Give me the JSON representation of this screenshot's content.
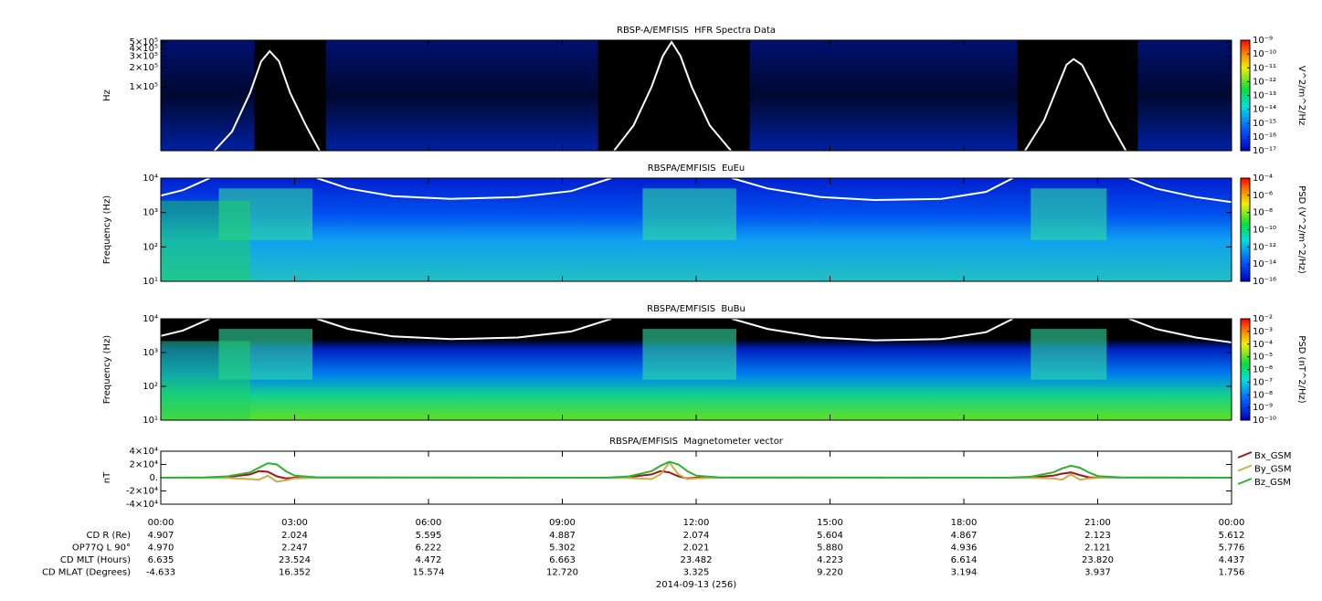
{
  "chart_data": [
    {
      "type": "spectrogram",
      "title": "RBSP-A/EMFISIS  HFR Spectra Data",
      "ylabel": "Hz",
      "ylog": true,
      "xlim": [
        0,
        24
      ],
      "xticks": [
        0,
        3,
        6,
        9,
        12,
        15,
        18,
        21,
        24
      ],
      "ylim": [
        10000,
        534000
      ],
      "yticks": [
        {
          "value": 500000,
          "label": "5×10⁵"
        },
        {
          "value": 400000,
          "label": "4×10⁵"
        },
        {
          "value": 300000,
          "label": "3×10⁵"
        },
        {
          "value": 200000,
          "label": "2×10⁵"
        },
        {
          "value": 100000,
          "label": "1×10⁵"
        }
      ],
      "series": [
        {
          "color": "#ffffff",
          "x": [
            1.2,
            1.6,
            2.0,
            2.25,
            2.44,
            2.65,
            2.9,
            3.25,
            3.56,
            6.8,
            10.16,
            10.6,
            11.0,
            11.25,
            11.45,
            11.65,
            11.9,
            12.3,
            12.78,
            16.0,
            19.37,
            19.8,
            20.1,
            20.3,
            20.46,
            20.65,
            20.9,
            21.25,
            21.63
          ],
          "values": [
            10000,
            20000,
            80000,
            250000,
            360000,
            250000,
            80000,
            25000,
            10000,
            null,
            10000,
            25000,
            100000,
            300000,
            500000,
            300000,
            100000,
            25000,
            10000,
            null,
            10000,
            30000,
            100000,
            220000,
            270000,
            220000,
            100000,
            30000,
            10000
          ]
        }
      ],
      "colorbar": {
        "label": "V^2/m^2/Hz",
        "lim": [
          1e-17,
          1e-09
        ],
        "ticks": [
          {
            "value": 1e-09,
            "label": "10⁻⁹"
          },
          {
            "value": 1e-10,
            "label": "10⁻¹⁰"
          },
          {
            "value": 1e-11,
            "label": "10⁻¹¹"
          },
          {
            "value": 1e-12,
            "label": "10⁻¹²"
          },
          {
            "value": 1e-13,
            "label": "10⁻¹³"
          },
          {
            "value": 1e-14,
            "label": "10⁻¹⁴"
          },
          {
            "value": 1e-15,
            "label": "10⁻¹⁵"
          },
          {
            "value": 1e-16,
            "label": "10⁻¹⁶"
          },
          {
            "value": 1e-17,
            "label": "10⁻¹⁷"
          }
        ]
      }
    },
    {
      "type": "spectrogram",
      "title": "RBSPA/EMFISIS  EuEu",
      "ylabel": "Frequency (Hz)",
      "ylog": true,
      "xlim": [
        0,
        24
      ],
      "xticks": [
        0,
        3,
        6,
        9,
        12,
        15,
        18,
        21,
        24
      ],
      "ylim": [
        10,
        10000
      ],
      "yticks": [
        {
          "value": 10000,
          "label": "10⁴"
        },
        {
          "value": 1000,
          "label": "10³"
        },
        {
          "value": 100,
          "label": "10²"
        },
        {
          "value": 10,
          "label": "10¹"
        }
      ],
      "series": [
        {
          "color": "#ffffff",
          "x": [
            0,
            0.5,
            1.1,
            2.3,
            3.5,
            4.2,
            5.2,
            6.5,
            8,
            9.2,
            10.1,
            11.4,
            12.8,
            13.6,
            14.8,
            16,
            17.5,
            18.5,
            19.1,
            20.4,
            21.7,
            22.3,
            23.2,
            24
          ],
          "values": [
            3100,
            4500,
            10000,
            null,
            10000,
            5000,
            3000,
            2500,
            2800,
            4200,
            10000,
            null,
            10000,
            5000,
            2800,
            2300,
            2500,
            4000,
            10000,
            null,
            10000,
            5000,
            2800,
            2000
          ]
        }
      ],
      "colorbar": {
        "label": "PSD (V^2/m^2/Hz)",
        "lim": [
          1e-16,
          0.0001
        ],
        "ticks": [
          {
            "value": 0.0001,
            "label": "10⁻⁴"
          },
          {
            "value": 1e-06,
            "label": "10⁻⁶"
          },
          {
            "value": 1e-08,
            "label": "10⁻⁸"
          },
          {
            "value": 1e-10,
            "label": "10⁻¹⁰"
          },
          {
            "value": 1e-12,
            "label": "10⁻¹²"
          },
          {
            "value": 1e-14,
            "label": "10⁻¹⁴"
          },
          {
            "value": 1e-16,
            "label": "10⁻¹⁶"
          }
        ]
      }
    },
    {
      "type": "spectrogram",
      "title": "RBSPA/EMFISIS  BuBu",
      "ylabel": "Frequency (Hz)",
      "ylog": true,
      "xlim": [
        0,
        24
      ],
      "xticks": [
        0,
        3,
        6,
        9,
        12,
        15,
        18,
        21,
        24
      ],
      "ylim": [
        10,
        10000
      ],
      "yticks": [
        {
          "value": 10000,
          "label": "10⁴"
        },
        {
          "value": 1000,
          "label": "10³"
        },
        {
          "value": 100,
          "label": "10²"
        },
        {
          "value": 10,
          "label": "10¹"
        }
      ],
      "series": [
        {
          "color": "#ffffff",
          "x": [
            0,
            0.5,
            1.1,
            2.3,
            3.5,
            4.2,
            5.2,
            6.5,
            8,
            9.2,
            10.1,
            11.4,
            12.8,
            13.6,
            14.8,
            16,
            17.5,
            18.5,
            19.1,
            20.4,
            21.7,
            22.3,
            23.2,
            24
          ],
          "values": [
            3100,
            4500,
            10000,
            null,
            10000,
            5000,
            3000,
            2500,
            2800,
            4200,
            10000,
            null,
            10000,
            5000,
            2800,
            2300,
            2500,
            4000,
            10000,
            null,
            10000,
            5000,
            2800,
            2000
          ]
        }
      ],
      "colorbar": {
        "label": "PSD (nT^2/Hz)",
        "lim": [
          1e-10,
          0.01
        ],
        "ticks": [
          {
            "value": 0.01,
            "label": "10⁻²"
          },
          {
            "value": 0.001,
            "label": "10⁻³"
          },
          {
            "value": 0.0001,
            "label": "10⁻⁴"
          },
          {
            "value": 1e-05,
            "label": "10⁻⁵"
          },
          {
            "value": 1e-06,
            "label": "10⁻⁶"
          },
          {
            "value": 1e-07,
            "label": "10⁻⁷"
          },
          {
            "value": 1e-08,
            "label": "10⁻⁸"
          },
          {
            "value": 1e-09,
            "label": "10⁻⁹"
          },
          {
            "value": 1e-10,
            "label": "10⁻¹⁰"
          }
        ]
      }
    },
    {
      "type": "line",
      "title": "RBSPA/EMFISIS  Magnetometer vector",
      "ylabel": "nT",
      "ylog": false,
      "xlim": [
        0,
        24
      ],
      "xticks": [
        {
          "value": 0,
          "label": "00:00"
        },
        {
          "value": 3,
          "label": "03:00"
        },
        {
          "value": 6,
          "label": "06:00"
        },
        {
          "value": 9,
          "label": "09:00"
        },
        {
          "value": 12,
          "label": "12:00"
        },
        {
          "value": 15,
          "label": "15:00"
        },
        {
          "value": 18,
          "label": "18:00"
        },
        {
          "value": 21,
          "label": "21:00"
        },
        {
          "value": 24,
          "label": "00:00"
        }
      ],
      "ylim": [
        -40000,
        40000
      ],
      "yticks": [
        {
          "value": 40000,
          "label": "4×10⁴"
        },
        {
          "value": 20000,
          "label": "2×10⁴"
        },
        {
          "value": 0,
          "label": "0."
        },
        {
          "value": -20000,
          "label": "-2×10⁴"
        },
        {
          "value": -40000,
          "label": "-4×10⁴"
        }
      ],
      "series": [
        {
          "name": "Bx_GSM",
          "color": "#a01818",
          "x": [
            0,
            1,
            1.5,
            2,
            2.2,
            2.4,
            2.6,
            2.8,
            3,
            3.5,
            10,
            10.5,
            11,
            11.2,
            11.4,
            11.6,
            11.8,
            12,
            12.5,
            19,
            19.5,
            20,
            20.2,
            20.4,
            20.6,
            20.8,
            21,
            21.5,
            24
          ],
          "values": [
            0,
            0,
            1000,
            5000,
            10000,
            9000,
            2000,
            -1000,
            0,
            0,
            0,
            1000,
            5000,
            10000,
            8000,
            2000,
            -1000,
            0,
            0,
            0,
            500,
            3000,
            6000,
            8000,
            4000,
            500,
            0,
            0,
            0
          ]
        },
        {
          "name": "By_GSM",
          "color": "#c8b048",
          "x": [
            0,
            1,
            1.5,
            2,
            2.2,
            2.4,
            2.6,
            2.8,
            3,
            3.5,
            10,
            10.5,
            11,
            11.2,
            11.4,
            11.6,
            11.8,
            12,
            12.5,
            19,
            19.5,
            20,
            20.2,
            20.4,
            20.6,
            20.8,
            21,
            21.5,
            24
          ],
          "values": [
            0,
            -200,
            -500,
            -2000,
            -3000,
            3000,
            -6000,
            -4000,
            -1000,
            0,
            0,
            -500,
            -2000,
            5000,
            23000,
            5000,
            -2000,
            -1000,
            0,
            0,
            -300,
            -1000,
            -3000,
            5000,
            -3000,
            -1000,
            -300,
            0,
            0
          ]
        },
        {
          "name": "Bz_GSM",
          "color": "#30b030",
          "x": [
            0,
            1,
            1.5,
            2,
            2.2,
            2.4,
            2.6,
            2.8,
            3,
            3.5,
            10,
            10.5,
            11,
            11.2,
            11.4,
            11.6,
            11.8,
            12,
            12.5,
            19,
            19.5,
            20,
            20.2,
            20.4,
            20.6,
            20.8,
            21,
            21.5,
            24
          ],
          "values": [
            0,
            500,
            2000,
            8000,
            15000,
            22000,
            20000,
            10000,
            3000,
            500,
            0,
            2000,
            10000,
            18000,
            24000,
            20000,
            10000,
            3000,
            500,
            0,
            1500,
            8000,
            14000,
            18000,
            15000,
            8000,
            2500,
            500,
            0
          ]
        }
      ]
    }
  ],
  "ephemeris": {
    "rows": [
      {
        "label": "CD R (Re)",
        "values": [
          "4.907",
          "2.024",
          "5.595",
          "4.887",
          "2.074",
          "5.604",
          "4.867",
          "2.123",
          "5.612"
        ]
      },
      {
        "label": "OP77Q L 90°",
        "values": [
          "4.970",
          "2.247",
          "6.222",
          "5.302",
          "2.021",
          "5.880",
          "4.936",
          "2.121",
          "5.776"
        ]
      },
      {
        "label": "CD MLT (Hours)",
        "values": [
          "6.635",
          "23.524",
          "4.472",
          "6.663",
          "23.482",
          "4.223",
          "6.614",
          "23.820",
          "4.437"
        ]
      },
      {
        "label": "CD MLAT (Degrees)",
        "values": [
          "-4.633",
          "16.352",
          "15.574",
          "12.720",
          "3.325",
          "9.220",
          "3.194",
          "3.937",
          "1.756"
        ]
      }
    ],
    "date": "2014-09-13 (256)"
  }
}
